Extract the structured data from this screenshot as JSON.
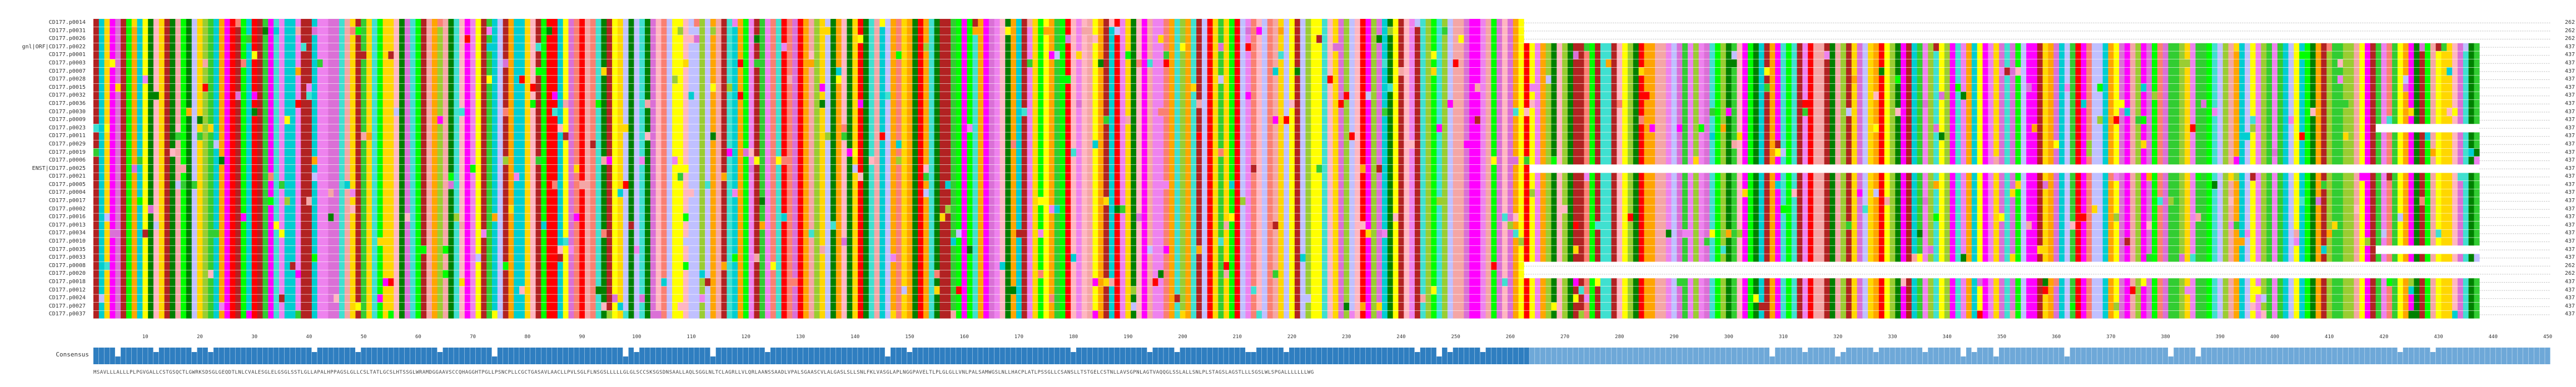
{
  "rows": [
    {
      "name": "CD177.p0014",
      "end": "262",
      "len": 262
    },
    {
      "name": "CD177.p0031",
      "end": "262",
      "len": 262
    },
    {
      "name": "CD177.p0026",
      "end": "262",
      "len": 262
    },
    {
      "name": "gnl|ORF|CD177.p0022",
      "end": "437",
      "len": 437
    },
    {
      "name": "CD177.p0001",
      "end": "437",
      "len": 437
    },
    {
      "name": "CD177.p0003",
      "end": "437",
      "len": 437
    },
    {
      "name": "CD177.p0007",
      "end": "437",
      "len": 437
    },
    {
      "name": "CD177.p0028",
      "end": "437",
      "len": 437
    },
    {
      "name": "CD177.p0015",
      "end": "437",
      "len": 437
    },
    {
      "name": "CD177.p0032",
      "end": "437",
      "len": 437
    },
    {
      "name": "CD177.p0036",
      "end": "437",
      "len": 437
    },
    {
      "name": "CD177.p0030",
      "end": "437",
      "len": 437
    },
    {
      "name": "CD177.p0009",
      "end": "437",
      "len": 437
    },
    {
      "name": "CD177.p0023",
      "end": "437",
      "len": 437
    },
    {
      "name": "CD177.p0011",
      "end": "437",
      "len": 437
    },
    {
      "name": "CD177.p0029",
      "end": "437",
      "len": 437
    },
    {
      "name": "CD177.p0019",
      "end": "437",
      "len": 437
    },
    {
      "name": "CD177.p0006",
      "end": "437",
      "len": 437
    },
    {
      "name": "ENST|CD177.p0025",
      "end": "437",
      "len": 437
    },
    {
      "name": "CD177.p0021",
      "end": "437",
      "len": 437
    },
    {
      "name": "CD177.p0005",
      "end": "437",
      "len": 437
    },
    {
      "name": "CD177.p0004",
      "end": "437",
      "len": 437
    },
    {
      "name": "CD177.p0017",
      "end": "437",
      "len": 437
    },
    {
      "name": "CD177.p0002",
      "end": "437",
      "len": 437
    },
    {
      "name": "CD177.p0016",
      "end": "437",
      "len": 437
    },
    {
      "name": "CD177.p0013",
      "end": "437",
      "len": 437
    },
    {
      "name": "CD177.p0034",
      "end": "437",
      "len": 437
    },
    {
      "name": "CD177.p0010",
      "end": "437",
      "len": 437
    },
    {
      "name": "CD177.p0035",
      "end": "437",
      "len": 437
    },
    {
      "name": "CD177.p0033",
      "end": "437",
      "len": 437
    },
    {
      "name": "CD177.p0008",
      "end": "262",
      "len": 262
    },
    {
      "name": "CD177.p0020",
      "end": "262",
      "len": 262
    },
    {
      "name": "CD177.p0018",
      "end": "437",
      "len": 437
    },
    {
      "name": "CD177.p0012",
      "end": "437",
      "len": 437
    },
    {
      "name": "CD177.p0024",
      "end": "437",
      "len": 437
    },
    {
      "name": "CD177.p0027",
      "end": "437",
      "len": 437
    },
    {
      "name": "CD177.p0037",
      "end": "437",
      "len": 437
    }
  ],
  "consensus": {
    "label": "Consensus",
    "sequence": "MSAVLLLALLLPLPGVGALLCSTGSQCTLGWRKSDSGLGEQDTLNLCVALESGLELGSGLSSTLGLLAPALHPPAGSLGLLCSLTATLGCSLHTSSGLWRAMDGGAAVSCCQHAGGHTPGLLPSNCPLLCGCTGASAVLAACLLPVLSGLFLNSGSLLLLLGLGLSCCSKSGSDNSAALLAQLSGGLNLTCLAGRLLVLQRLAANSSAADLVPALSGAASCVLALGASLSLLSNLFKLVASGLAPLNGGPAVELTLPLGLGLLVNLPALSAMWGSLNLLHACPLATLPSSGLLCSANSLLTSTGELCSTNLLAVSGPNLAGTVAQQGLSSLALLSNLPLSTAGSLAGSTLLLSGSLWLSPGALLLLLLLWG",
    "barLevels": "high"
  },
  "axis": {
    "ticks": [
      "10",
      "20",
      "30",
      "40",
      "50",
      "60",
      "70",
      "80",
      "90",
      "100",
      "110",
      "120",
      "130",
      "140",
      "150",
      "160",
      "170",
      "180",
      "190",
      "200",
      "210",
      "220",
      "230",
      "240",
      "250",
      "260",
      "270",
      "280",
      "290",
      "300",
      "310",
      "320",
      "330",
      "340",
      "350",
      "360",
      "370",
      "380",
      "390",
      "400",
      "410",
      "420",
      "430",
      "440",
      "450"
    ]
  },
  "colors": {
    "palette": [
      "#ff00ff",
      "#ee82ee",
      "#fa8072",
      "#f4a6a6",
      "#ffa500",
      "#ffd700",
      "#ffff00",
      "#9acd32",
      "#00ff00",
      "#32cd32",
      "#00ced1",
      "#40e0d0",
      "#ff0000",
      "#b22222",
      "#008000",
      "#ffb6c1",
      "#da70d6",
      "#c0c0ff"
    ],
    "consensus_bar": "#2f7ec0",
    "consensus_bar_light": "#6ea8d8",
    "gap": "#ffffff"
  },
  "gap_blocks": [
    {
      "row": 18,
      "from": 263,
      "to": 437
    },
    {
      "row": 28,
      "from": 418,
      "to": 437
    },
    {
      "row": 13,
      "from": 418,
      "to": 437
    }
  ],
  "total_columns": 450
}
